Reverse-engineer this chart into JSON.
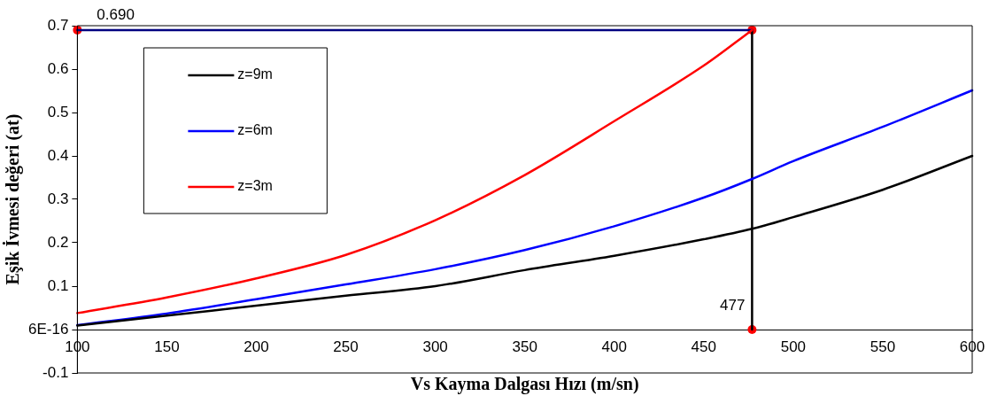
{
  "chart_data": {
    "type": "line",
    "xlabel": "Vs Kayma Dalgası Hızı (m/sn)",
    "ylabel": "Eşik İvmesi değeri (at)",
    "xlim": [
      100,
      600
    ],
    "xticks": [
      100,
      150,
      200,
      250,
      300,
      350,
      400,
      450,
      500,
      550,
      600
    ],
    "ylim": [
      -0.1,
      0.7
    ],
    "yticks": [
      -0.1,
      {
        "value": 0,
        "label": "6E-16"
      },
      0.1,
      0.2,
      0.3,
      0.4,
      0.5,
      0.6,
      0.7
    ],
    "legend": "top left",
    "marker": "none",
    "line_style": "solid",
    "annotations": [
      {
        "text": "0.690",
        "x": 100,
        "y": 0.69
      },
      {
        "text": "477",
        "x": 477,
        "y": 0
      }
    ],
    "series": [
      {
        "name": "z=9m",
        "color": "#000000",
        "x": [
          100,
          150,
          200,
          250,
          300,
          350,
          400,
          450,
          477,
          500,
          550,
          600
        ],
        "values": [
          0.009,
          0.032,
          0.055,
          0.078,
          0.1,
          0.137,
          0.17,
          0.208,
          0.232,
          0.259,
          0.322,
          0.4
        ]
      },
      {
        "name": "z=6m",
        "color": "#0000ff",
        "x": [
          100,
          150,
          200,
          250,
          300,
          350,
          400,
          450,
          477,
          500,
          550,
          600
        ],
        "values": [
          0.01,
          0.037,
          0.07,
          0.104,
          0.139,
          0.183,
          0.238,
          0.304,
          0.347,
          0.388,
          0.467,
          0.551
        ]
      },
      {
        "name": "z=3m",
        "color": "#ff0000",
        "x": [
          100,
          150,
          200,
          250,
          300,
          350,
          400,
          450,
          477
        ],
        "values": [
          0.038,
          0.074,
          0.118,
          0.172,
          0.252,
          0.356,
          0.48,
          0.608,
          0.69
        ]
      },
      {
        "type": "line",
        "color": "#000080",
        "x": [
          100,
          477
        ],
        "values": [
          0.69,
          0.69
        ]
      },
      {
        "type": "line",
        "color": "#000000",
        "x": [
          477,
          477
        ],
        "values": [
          0,
          0.69
        ]
      },
      {
        "type": "scatter",
        "color": "#ff0000",
        "marker": "circle",
        "x": [
          100,
          477,
          477
        ],
        "values": [
          0.69,
          0.69,
          0
        ]
      }
    ]
  }
}
